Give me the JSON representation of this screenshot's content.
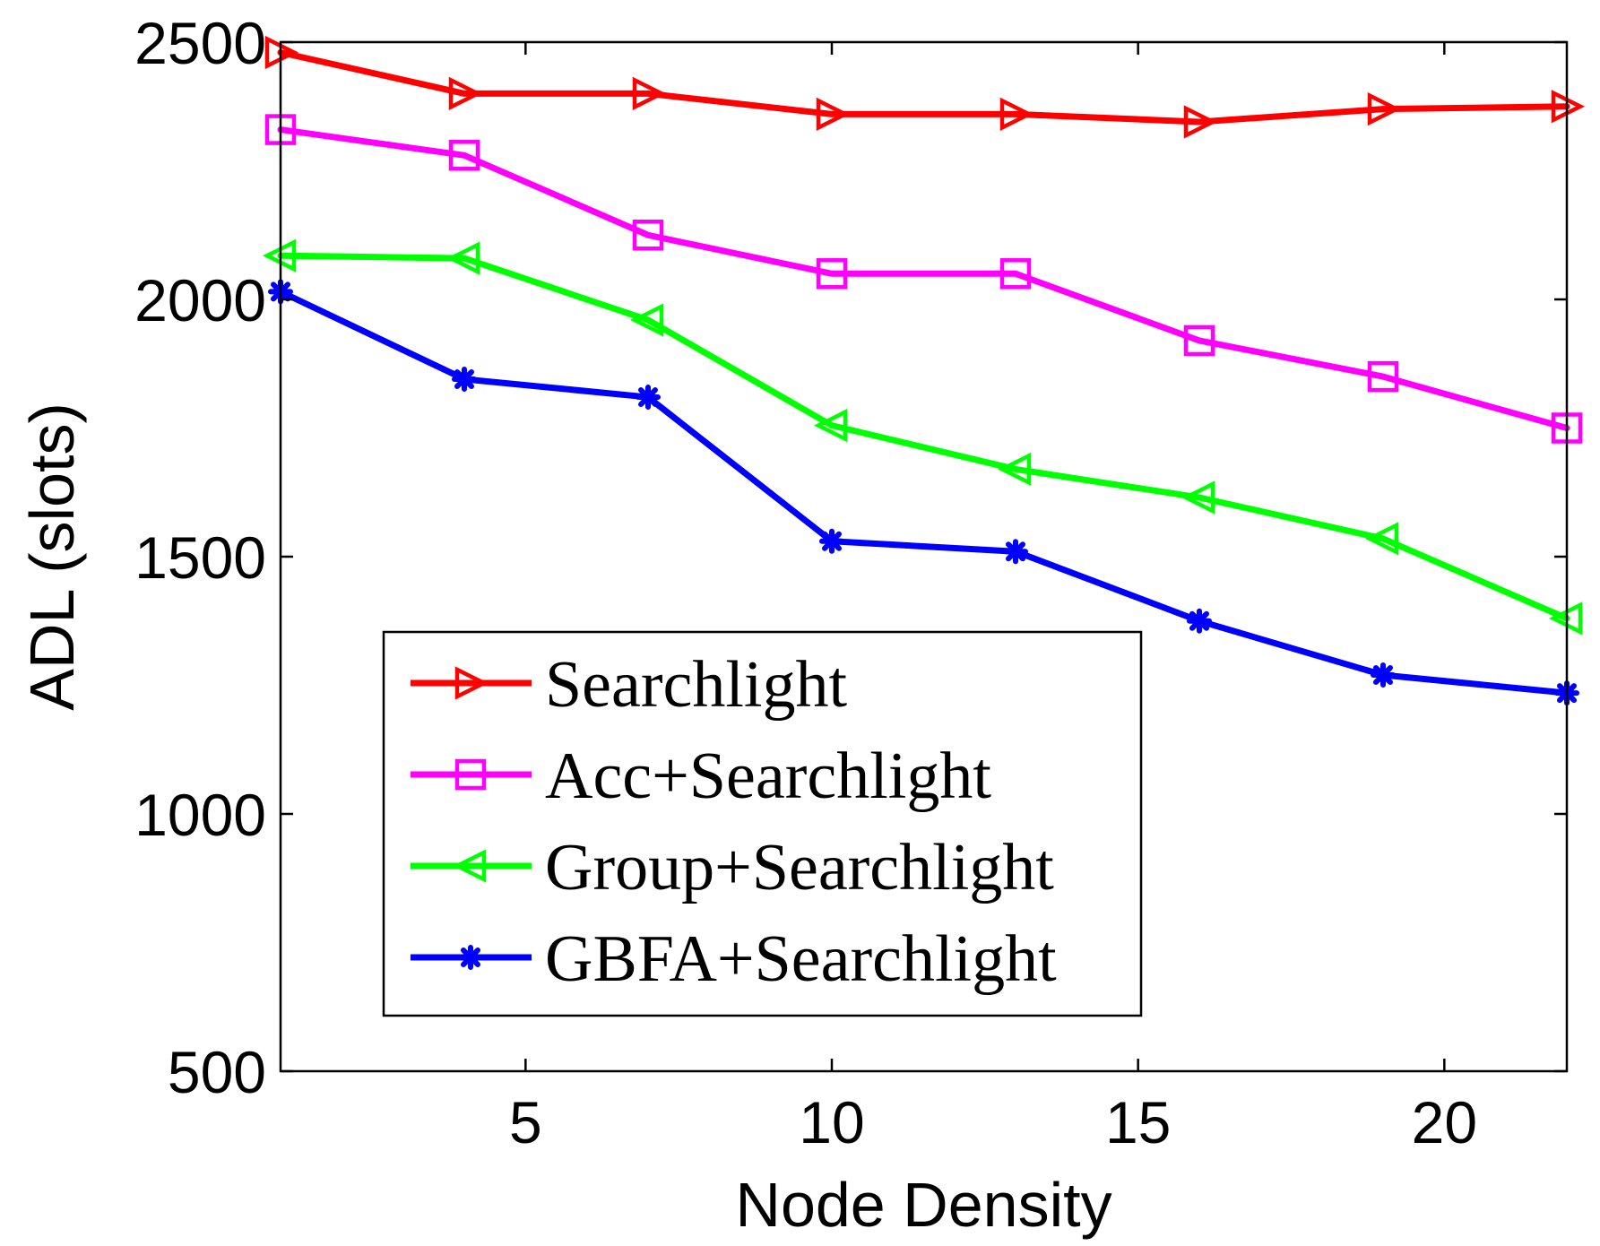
{
  "chart_data": {
    "type": "line",
    "title": "",
    "xlabel": "Node Density",
    "ylabel": "ADL (slots)",
    "xlim": [
      1,
      22
    ],
    "ylim": [
      500,
      2500
    ],
    "xticks": [
      5,
      10,
      15,
      20
    ],
    "yticks": [
      500,
      1000,
      1500,
      2000,
      2500
    ],
    "x": [
      1,
      4,
      7,
      10,
      13,
      16,
      19,
      22
    ],
    "legend_position": "bottom-left",
    "series": [
      {
        "name": "Searchlight",
        "color": "#ff0000",
        "marker": "triangle-right",
        "values": [
          2480,
          2400,
          2400,
          2360,
          2360,
          2345,
          2370,
          2375
        ]
      },
      {
        "name": "Acc+Searchlight",
        "color": "#ff00ff",
        "marker": "square",
        "values": [
          2330,
          2280,
          2125,
          2050,
          2050,
          1920,
          1850,
          1750
        ]
      },
      {
        "name": "Group+Searchlight",
        "color": "#00ff00",
        "marker": "triangle-left",
        "values": [
          2085,
          2080,
          1960,
          1755,
          1670,
          1615,
          1535,
          1380
        ]
      },
      {
        "name": "GBFA+Searchlight",
        "color": "#0000ff",
        "marker": "star",
        "values": [
          2015,
          1845,
          1810,
          1530,
          1510,
          1375,
          1270,
          1235
        ]
      }
    ]
  }
}
